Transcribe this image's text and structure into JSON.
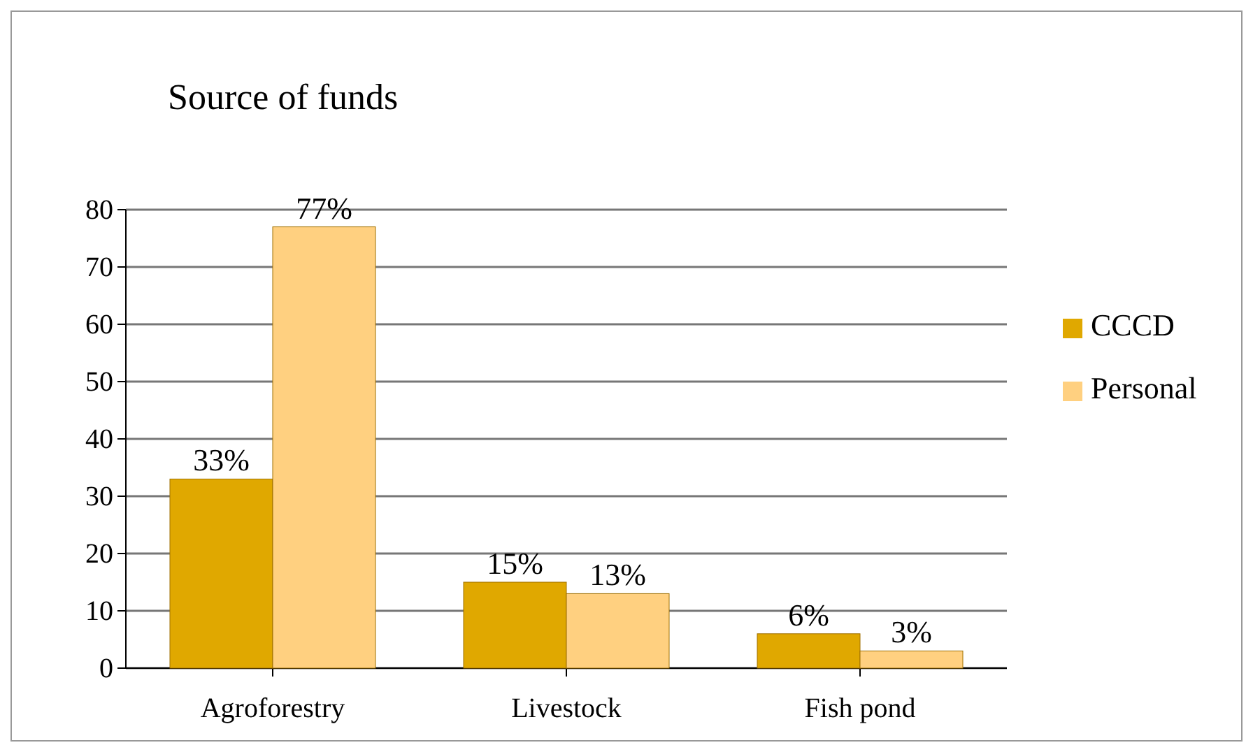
{
  "chart_data": {
    "type": "bar",
    "title": "Source of funds",
    "categories": [
      "Agroforestry",
      "Livestock",
      "Fish pond"
    ],
    "series": [
      {
        "name": "CCCD",
        "color": "#e0a800",
        "values": [
          33,
          15,
          6
        ],
        "value_labels": [
          "33%",
          "15%",
          "6%"
        ]
      },
      {
        "name": "Personal",
        "color": "#ffd080",
        "values": [
          77,
          13,
          3
        ],
        "value_labels": [
          "77%",
          "13%",
          "3%"
        ]
      }
    ],
    "ylim": [
      0,
      80
    ],
    "yticks": [
      0,
      10,
      20,
      30,
      40,
      50,
      60,
      70,
      80
    ],
    "grid": "y",
    "legend": "right"
  }
}
